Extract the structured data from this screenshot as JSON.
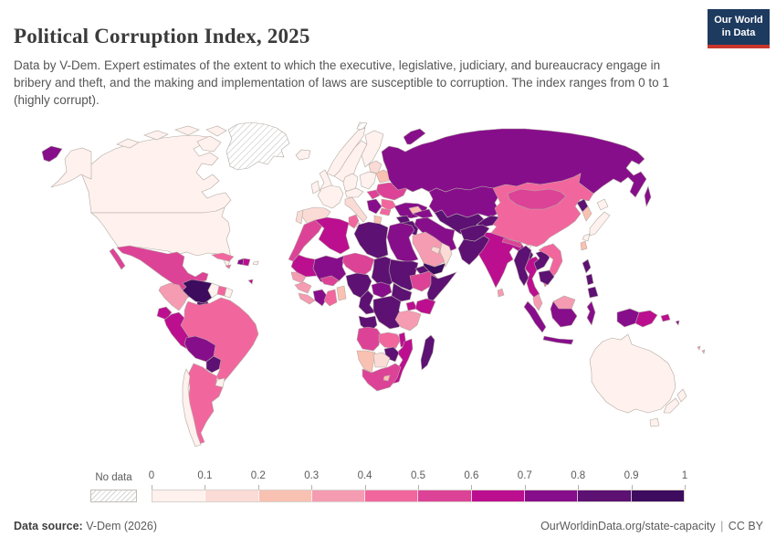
{
  "header": {
    "title": "Political Corruption Index, 2025",
    "subtitle": "Data by V-Dem. Expert estimates of the extent to which the executive, legislative, judiciary, and bureaucracy engage in bribery and theft, and the making and implementation of laws are susceptible to corruption. The index ranges from 0 to 1 (highly corrupt).",
    "logo": {
      "line1": "Our World",
      "line2": "in Data",
      "bg_color": "#1d3a5f",
      "accent_color": "#c9372c"
    }
  },
  "legend": {
    "no_data_label": "No data",
    "ticks": [
      "0",
      "0.1",
      "0.2",
      "0.3",
      "0.4",
      "0.5",
      "0.6",
      "0.7",
      "0.8",
      "0.9",
      "1"
    ],
    "colors": [
      "#fef1ee",
      "#fbdbd6",
      "#f9c1b2",
      "#f59bb2",
      "#f2669e",
      "#dc4397",
      "#bb0f90",
      "#870e8b",
      "#5c1173",
      "#3d0c5e"
    ]
  },
  "footer": {
    "source_label": "Data source:",
    "source_value": " V-Dem (2026)",
    "link": "OurWorldinData.org/state-capacity",
    "separator": " | ",
    "license": "CC BY"
  },
  "map": {
    "border_color": "#b3aaa2",
    "ocean_color": "#ffffff",
    "no_data_hatch_color": "#d4d4d4"
  },
  "chart_data": {
    "type": "heatmap",
    "subtype": "choropleth-world-map",
    "title": "Political Corruption Index, 2025",
    "unit": "index from 0 to 1 (highly corrupt)",
    "bins": {
      "start": 0,
      "end": 1,
      "step": 0.1
    },
    "legend_position": "bottom",
    "no_data_regions": [
      "Greenland",
      "Svalbard"
    ],
    "countries": [
      {
        "id": "canada",
        "name": "Canada",
        "value": 0.05
      },
      {
        "id": "united_states",
        "name": "United States",
        "value": 0.05
      },
      {
        "id": "greenland",
        "name": "Greenland",
        "value": "no-data"
      },
      {
        "id": "svalbard",
        "name": "Svalbard",
        "value": "no-data"
      },
      {
        "id": "mexico",
        "name": "Mexico",
        "value": 0.58
      },
      {
        "id": "guatemala",
        "name": "Guatemala",
        "value": 0.78
      },
      {
        "id": "honduras",
        "name": "Honduras",
        "value": 0.85
      },
      {
        "id": "nicaragua",
        "name": "Nicaragua",
        "value": 0.88
      },
      {
        "id": "costa_rica",
        "name": "Costa Rica",
        "value": 0.15
      },
      {
        "id": "panama",
        "name": "Panama",
        "value": 0.38
      },
      {
        "id": "cuba",
        "name": "Cuba",
        "value": 0.45
      },
      {
        "id": "jamaica",
        "name": "Jamaica",
        "value": 0.42
      },
      {
        "id": "haiti",
        "name": "Haiti",
        "value": 0.75
      },
      {
        "id": "dominican_republic",
        "name": "Dominican Republic",
        "value": 0.65
      },
      {
        "id": "puerto_rico",
        "name": "Puerto Rico",
        "value": 0.05
      },
      {
        "id": "trinidad_tobago",
        "name": "Trinidad and Tobago",
        "value": 0.62
      },
      {
        "id": "colombia",
        "name": "Colombia",
        "value": 0.35
      },
      {
        "id": "venezuela",
        "name": "Venezuela",
        "value": 0.92
      },
      {
        "id": "guyana",
        "name": "Guyana",
        "value": 0.08
      },
      {
        "id": "suriname",
        "name": "Suriname",
        "value": 0.45
      },
      {
        "id": "french_guiana",
        "name": "French Guiana",
        "value": 0.05
      },
      {
        "id": "ecuador",
        "name": "Ecuador",
        "value": 0.62
      },
      {
        "id": "peru",
        "name": "Peru",
        "value": 0.65
      },
      {
        "id": "brazil",
        "name": "Brazil",
        "value": 0.45
      },
      {
        "id": "bolivia",
        "name": "Bolivia",
        "value": 0.78
      },
      {
        "id": "paraguay",
        "name": "Paraguay",
        "value": 0.8
      },
      {
        "id": "chile",
        "name": "Chile",
        "value": 0.04
      },
      {
        "id": "argentina",
        "name": "Argentina",
        "value": 0.45
      },
      {
        "id": "uruguay",
        "name": "Uruguay",
        "value": 0.06
      },
      {
        "id": "iceland",
        "name": "Iceland",
        "value": 0.05
      },
      {
        "id": "norway",
        "name": "Norway",
        "value": 0.03
      },
      {
        "id": "sweden",
        "name": "Sweden",
        "value": 0.03
      },
      {
        "id": "finland",
        "name": "Finland",
        "value": 0.03
      },
      {
        "id": "denmark",
        "name": "Denmark",
        "value": 0.04
      },
      {
        "id": "united_kingdom",
        "name": "United Kingdom",
        "value": 0.07
      },
      {
        "id": "ireland",
        "name": "Ireland",
        "value": 0.06
      },
      {
        "id": "france",
        "name": "France",
        "value": 0.07
      },
      {
        "id": "spain",
        "name": "Spain",
        "value": 0.15
      },
      {
        "id": "portugal",
        "name": "Portugal",
        "value": 0.12
      },
      {
        "id": "germany",
        "name": "Germany",
        "value": 0.05
      },
      {
        "id": "alpine",
        "name": "Switzerland and Austria",
        "value": 0.05
      },
      {
        "id": "italy",
        "name": "Italy",
        "value": 0.15
      },
      {
        "id": "poland",
        "name": "Poland",
        "value": 0.08
      },
      {
        "id": "baltics",
        "name": "Baltic states",
        "value": 0.15
      },
      {
        "id": "belarus",
        "name": "Belarus",
        "value": 0.25
      },
      {
        "id": "ukraine",
        "name": "Ukraine",
        "value": 0.55
      },
      {
        "id": "moldova_romania",
        "name": "Romania and Moldova",
        "value": 0.45
      },
      {
        "id": "hungary",
        "name": "Hungary",
        "value": 0.52
      },
      {
        "id": "balkans",
        "name": "Western Balkans",
        "value": 0.72
      },
      {
        "id": "bulgaria",
        "name": "Bulgaria",
        "value": 0.42
      },
      {
        "id": "greece",
        "name": "Greece",
        "value": 0.25
      },
      {
        "id": "turkey",
        "name": "Turkey",
        "value": 0.75
      },
      {
        "id": "russia",
        "name": "Russia",
        "value": 0.78
      },
      {
        "id": "kazakhstan",
        "name": "Kazakhstan",
        "value": 0.78
      },
      {
        "id": "uzbekistan_turkmenistan",
        "name": "Uzbekistan and Turkmenistan",
        "value": 0.85
      },
      {
        "id": "kyrgyzstan_tajikistan",
        "name": "Kyrgyzstan and Tajikistan",
        "value": 0.85
      },
      {
        "id": "georgia",
        "name": "Georgia",
        "value": 0.28
      },
      {
        "id": "azerbaijan",
        "name": "Azerbaijan",
        "value": 0.72
      },
      {
        "id": "iran",
        "name": "Iran",
        "value": 0.78
      },
      {
        "id": "iraq",
        "name": "Iraq",
        "value": 0.85
      },
      {
        "id": "syria",
        "name": "Syria",
        "value": 0.88
      },
      {
        "id": "israel",
        "name": "Israel",
        "value": 0.08
      },
      {
        "id": "jordan",
        "name": "Jordan",
        "value": 0.42
      },
      {
        "id": "saudi_arabia",
        "name": "Saudi Arabia",
        "value": 0.32
      },
      {
        "id": "yemen",
        "name": "Yemen",
        "value": 0.96
      },
      {
        "id": "oman",
        "name": "Oman",
        "value": 0.18
      },
      {
        "id": "uae_qatar",
        "name": "United Arab Emirates and Qatar",
        "value": 0.15
      },
      {
        "id": "afghanistan",
        "name": "Afghanistan",
        "value": 0.85
      },
      {
        "id": "pakistan",
        "name": "Pakistan",
        "value": 0.82
      },
      {
        "id": "india",
        "name": "India",
        "value": 0.62
      },
      {
        "id": "nepal",
        "name": "Nepal",
        "value": 0.55
      },
      {
        "id": "bhutan",
        "name": "Bhutan",
        "value": 0.05
      },
      {
        "id": "bangladesh",
        "name": "Bangladesh",
        "value": 0.85
      },
      {
        "id": "sri_lanka",
        "name": "Sri Lanka",
        "value": 0.32
      },
      {
        "id": "china",
        "name": "China",
        "value": 0.45
      },
      {
        "id": "mongolia",
        "name": "Mongolia",
        "value": 0.58
      },
      {
        "id": "north_korea",
        "name": "North Korea",
        "value": 0.85
      },
      {
        "id": "south_korea",
        "name": "South Korea",
        "value": 0.22
      },
      {
        "id": "japan",
        "name": "Japan",
        "value": 0.04
      },
      {
        "id": "taiwan",
        "name": "Taiwan",
        "value": 0.28
      },
      {
        "id": "myanmar",
        "name": "Myanmar",
        "value": 0.85
      },
      {
        "id": "thailand",
        "name": "Thailand",
        "value": 0.62
      },
      {
        "id": "laos",
        "name": "Laos",
        "value": 0.85
      },
      {
        "id": "vietnam",
        "name": "Vietnam",
        "value": 0.42
      },
      {
        "id": "cambodia",
        "name": "Cambodia",
        "value": 0.85
      },
      {
        "id": "malaysia",
        "name": "Malaysia",
        "value": 0.32
      },
      {
        "id": "indonesia",
        "name": "Indonesia",
        "value": 0.75
      },
      {
        "id": "philippines",
        "name": "Philippines",
        "value": 0.82
      },
      {
        "id": "papua_new_guinea",
        "name": "Papua New Guinea",
        "value": 0.65
      },
      {
        "id": "solomon_islands",
        "name": "Solomon Islands",
        "value": 0.75
      },
      {
        "id": "fiji",
        "name": "Fiji",
        "value": 0.35
      },
      {
        "id": "australia",
        "name": "Australia",
        "value": 0.04
      },
      {
        "id": "new_zealand",
        "name": "New Zealand",
        "value": 0.03
      },
      {
        "id": "morocco",
        "name": "Morocco",
        "value": 0.55
      },
      {
        "id": "algeria",
        "name": "Algeria",
        "value": 0.68
      },
      {
        "id": "tunisia",
        "name": "Tunisia",
        "value": 0.45
      },
      {
        "id": "libya",
        "name": "Libya",
        "value": 0.85
      },
      {
        "id": "egypt",
        "name": "Egypt",
        "value": 0.78
      },
      {
        "id": "mauritania",
        "name": "Mauritania",
        "value": 0.62
      },
      {
        "id": "mali",
        "name": "Mali",
        "value": 0.75
      },
      {
        "id": "senegal",
        "name": "Senegal",
        "value": 0.38
      },
      {
        "id": "guinea",
        "name": "Guinea",
        "value": 0.32
      },
      {
        "id": "sierra_leone_liberia",
        "name": "Sierra Leone and Liberia",
        "value": 0.35
      },
      {
        "id": "ivory_coast",
        "name": "Cote d'Ivoire",
        "value": 0.72
      },
      {
        "id": "ghana",
        "name": "Ghana",
        "value": 0.48
      },
      {
        "id": "togo_benin",
        "name": "Togo and Benin",
        "value": 0.28
      },
      {
        "id": "burkina_faso",
        "name": "Burkina Faso",
        "value": 0.58
      },
      {
        "id": "niger",
        "name": "Niger",
        "value": 0.55
      },
      {
        "id": "nigeria",
        "name": "Nigeria",
        "value": 0.85
      },
      {
        "id": "chad",
        "name": "Chad",
        "value": 0.85
      },
      {
        "id": "sudan",
        "name": "Sudan",
        "value": 0.85
      },
      {
        "id": "eritrea",
        "name": "Eritrea",
        "value": 0.85
      },
      {
        "id": "ethiopia",
        "name": "Ethiopia",
        "value": 0.52
      },
      {
        "id": "somalia",
        "name": "Somalia",
        "value": 0.85
      },
      {
        "id": "south_sudan",
        "name": "South Sudan",
        "value": 0.88
      },
      {
        "id": "central_african_republic",
        "name": "Central African Republic",
        "value": 0.72
      },
      {
        "id": "cameroon",
        "name": "Cameroon",
        "value": 0.85
      },
      {
        "id": "gabon_congo",
        "name": "Gabon and Congo",
        "value": 0.82
      },
      {
        "id": "drc",
        "name": "Democratic Republic of Congo",
        "value": 0.85
      },
      {
        "id": "uganda",
        "name": "Uganda",
        "value": 0.68
      },
      {
        "id": "kenya",
        "name": "Kenya",
        "value": 0.62
      },
      {
        "id": "rwanda_burundi",
        "name": "Rwanda and Burundi",
        "value": 0.62
      },
      {
        "id": "tanzania",
        "name": "Tanzania",
        "value": 0.32
      },
      {
        "id": "angola",
        "name": "Angola",
        "value": 0.52
      },
      {
        "id": "zambia",
        "name": "Zambia",
        "value": 0.42
      },
      {
        "id": "malawi",
        "name": "Malawi",
        "value": 0.65
      },
      {
        "id": "mozambique",
        "name": "Mozambique",
        "value": 0.62
      },
      {
        "id": "zimbabwe",
        "name": "Zimbabwe",
        "value": 0.85
      },
      {
        "id": "namibia",
        "name": "Namibia",
        "value": 0.22
      },
      {
        "id": "botswana",
        "name": "Botswana",
        "value": 0.18
      },
      {
        "id": "south_africa",
        "name": "South Africa",
        "value": 0.52
      },
      {
        "id": "lesotho",
        "name": "Lesotho",
        "value": 0.25
      },
      {
        "id": "madagascar",
        "name": "Madagascar",
        "value": 0.82
      }
    ]
  }
}
